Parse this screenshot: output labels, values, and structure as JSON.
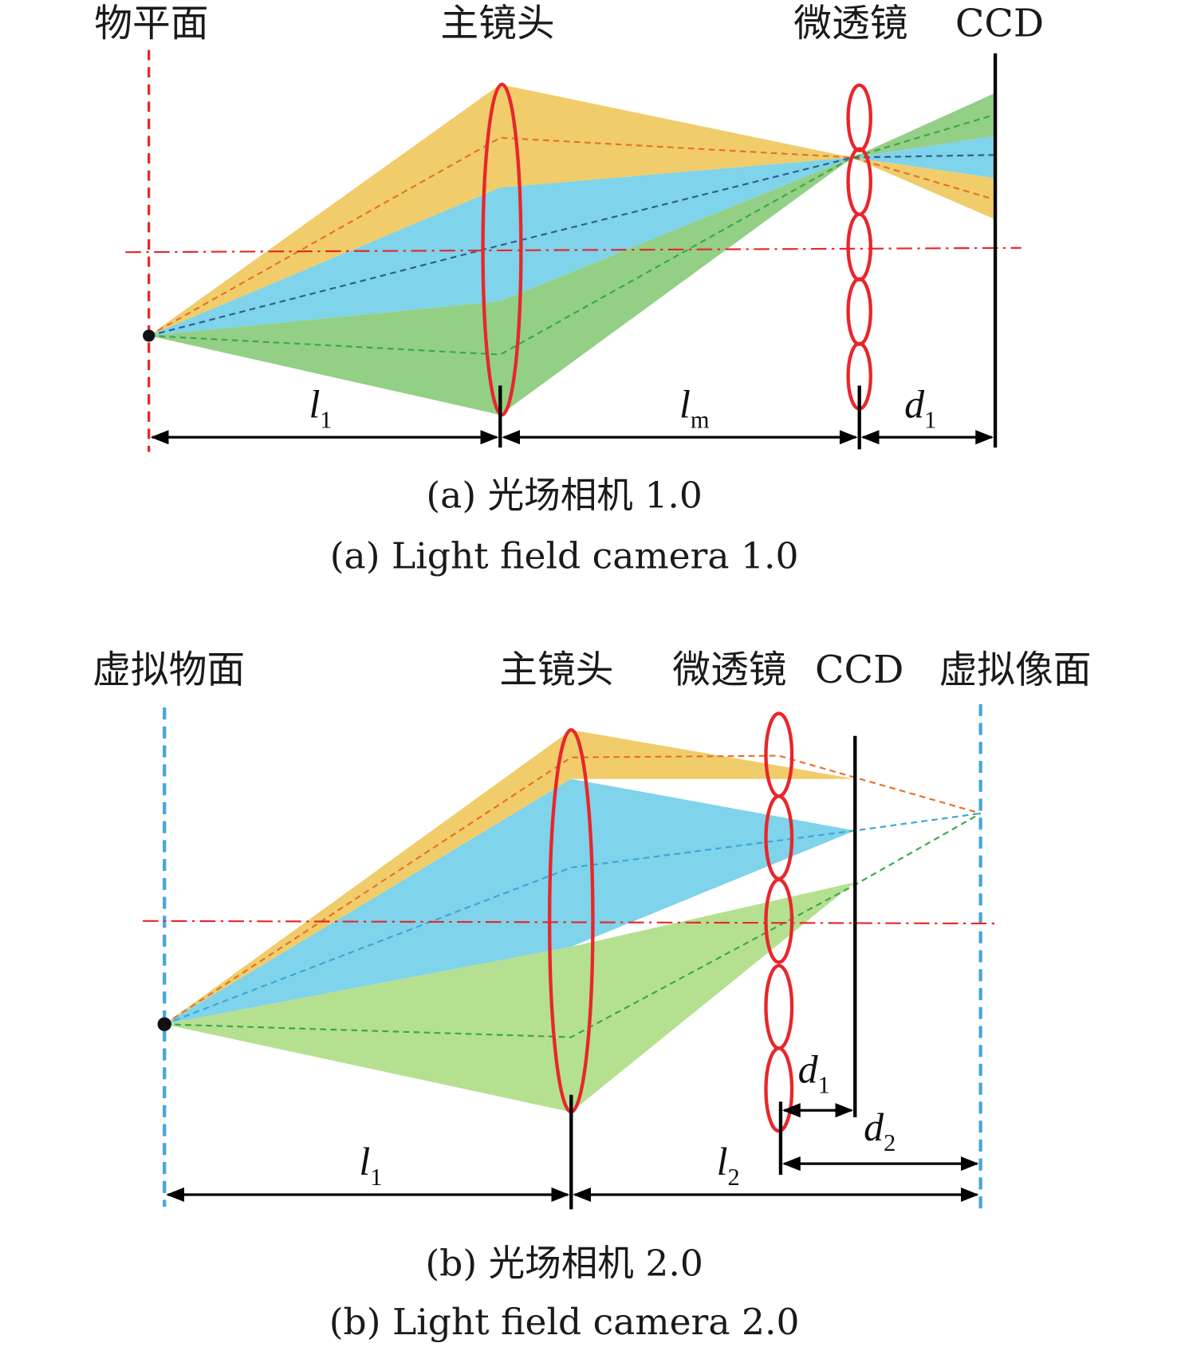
{
  "panel_a": {
    "labels": {
      "object_plane": "物平面",
      "main_lens": "主镜头",
      "microlens": "微透镜",
      "ccd": "CCD"
    },
    "dims": {
      "l1": "l",
      "l1_sub": "1",
      "lm": "l",
      "lm_sub": "m",
      "d1": "d",
      "d1_sub": "1"
    },
    "caption_cn": "(a) 光场相机 1.0",
    "caption_en": "(a) Light field camera 1.0"
  },
  "panel_b": {
    "labels": {
      "virtual_object_plane": "虚拟物面",
      "main_lens": "主镜头",
      "microlens": "微透镜",
      "ccd": "CCD",
      "virtual_image_plane": "虚拟像面"
    },
    "dims": {
      "l1": "l",
      "l1_sub": "1",
      "l2": "l",
      "l2_sub": "2",
      "d1": "d",
      "d1_sub": "1",
      "d2": "d",
      "d2_sub": "2"
    },
    "caption_cn": "(b) 光场相机 2.0",
    "caption_en": "(b) Light field camera 2.0"
  },
  "colors": {
    "yellow": "#f0cd6a",
    "blue": "#7fd3ea",
    "green_a": "#93cf85",
    "green_b": "#b5e090",
    "lens_red": "#e8262b",
    "plane_blue": "#4aa6d8"
  }
}
